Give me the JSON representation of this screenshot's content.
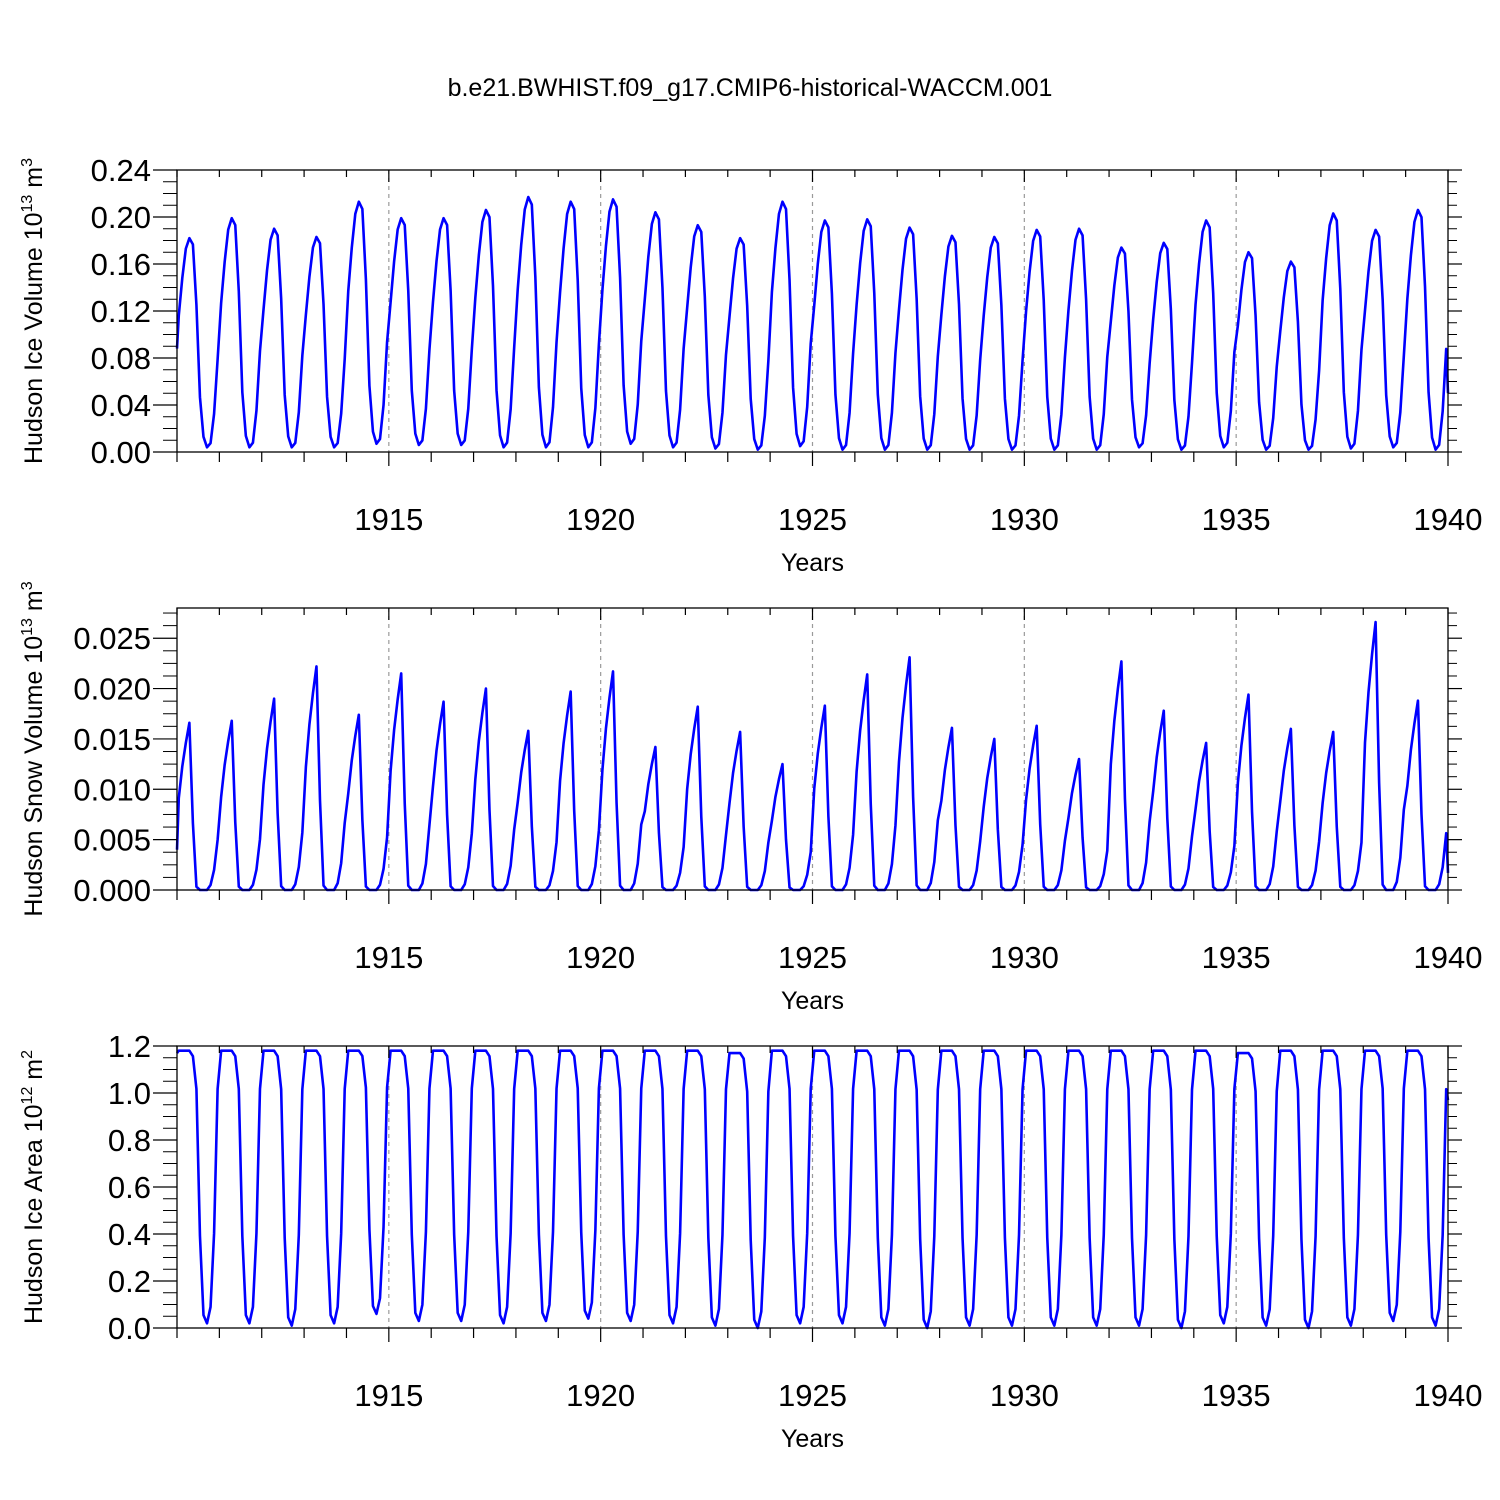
{
  "figure_title": "b.e21.BWHIST.f09_g17.CMIP6-historical-WACCM.001",
  "colors": {
    "line": "#0000ff",
    "axis": "#000000",
    "grid": "#9a9a9a"
  },
  "chart_data": [
    {
      "type": "line",
      "ylabel_main": "Hudson Ice Volume 10",
      "ylabel_exp": "13",
      "ylabel_unit": " m",
      "ylabel_unit_exp": "3",
      "xlabel": "Years",
      "xlim": [
        1910.0,
        1940.0
      ],
      "ylim": [
        0.0,
        0.24
      ],
      "xticks": [
        1915,
        1920,
        1925,
        1930,
        1935,
        1940
      ],
      "yticks": [
        "0.00",
        "0.04",
        "0.08",
        "0.12",
        "0.16",
        "0.20",
        "0.24"
      ],
      "grid_x": true,
      "series": [
        {
          "x_start": 1910.042,
          "step": 0.08333,
          "cycle_peaks": [
            0.182,
            0.199,
            0.19,
            0.183,
            0.213,
            0.199,
            0.199,
            0.206,
            0.217,
            0.213,
            0.215,
            0.204,
            0.193,
            0.182,
            0.213,
            0.197,
            0.198,
            0.191,
            0.184,
            0.183,
            0.189,
            0.19,
            0.174,
            0.178,
            0.197,
            0.17,
            0.162,
            0.203,
            0.189,
            0.206
          ],
          "cycle_mins": [
            0.004,
            0.004,
            0.004,
            0.004,
            0.007,
            0.006,
            0.006,
            0.004,
            0.004,
            0.004,
            0.007,
            0.004,
            0.003,
            0.002,
            0.005,
            0.002,
            0.002,
            0.002,
            0.002,
            0.002,
            0.002,
            0.002,
            0.004,
            0.002,
            0.004,
            0.002,
            0.002,
            0.003,
            0.004,
            0.002
          ],
          "values_start": 0.088,
          "values_end": 0.05
        }
      ]
    },
    {
      "type": "line",
      "ylabel_main": "Hudson Snow Volume 10",
      "ylabel_exp": "13",
      "ylabel_unit": " m",
      "ylabel_unit_exp": "3",
      "xlabel": "Years",
      "xlim": [
        1910.0,
        1940.0
      ],
      "ylim": [
        0.0,
        0.028
      ],
      "xticks": [
        1915,
        1920,
        1925,
        1930,
        1935,
        1940
      ],
      "yticks": [
        "0.000",
        "0.005",
        "0.010",
        "0.015",
        "0.020",
        "0.025"
      ],
      "grid_x": true,
      "series": [
        {
          "x_start": 1910.042,
          "step": 0.08333,
          "cycle_peaks": [
            0.0166,
            0.0168,
            0.019,
            0.0222,
            0.0174,
            0.0215,
            0.0187,
            0.02,
            0.0158,
            0.0197,
            0.0217,
            0.0142,
            0.0182,
            0.0157,
            0.0125,
            0.0183,
            0.0214,
            0.0231,
            0.0161,
            0.015,
            0.0163,
            0.013,
            0.0227,
            0.0178,
            0.0146,
            0.0194,
            0.016,
            0.0157,
            0.0266,
            0.0188
          ],
          "cycle_mins": [
            0.0,
            0.0,
            0.0,
            0.0,
            0.0,
            0.0,
            0.0,
            0.0,
            0.0,
            0.0,
            0.0,
            0.0,
            0.0,
            0.0,
            0.0,
            0.0,
            0.0,
            0.0,
            0.0,
            0.0,
            0.0,
            0.0,
            0.0,
            0.0,
            0.0,
            0.0,
            0.0,
            0.0,
            0.0,
            0.0
          ],
          "values_start": 0.004,
          "values_end": 0.0017
        }
      ]
    },
    {
      "type": "line",
      "ylabel_main": "Hudson Ice Area 10",
      "ylabel_exp": "12",
      "ylabel_unit": " m",
      "ylabel_unit_exp": "2",
      "xlabel": "Years",
      "xlim": [
        1910.0,
        1940.0
      ],
      "ylim": [
        0.0,
        1.2
      ],
      "xticks": [
        1915,
        1920,
        1925,
        1930,
        1935,
        1940
      ],
      "yticks": [
        "0.0",
        "0.2",
        "0.4",
        "0.6",
        "0.8",
        "1.0",
        "1.2"
      ],
      "grid_x": true,
      "series": [
        {
          "x_start": 1910.042,
          "step": 0.08333,
          "cycle_peaks": [
            1.18,
            1.18,
            1.18,
            1.18,
            1.18,
            1.18,
            1.18,
            1.18,
            1.18,
            1.18,
            1.18,
            1.18,
            1.18,
            1.17,
            1.18,
            1.18,
            1.18,
            1.18,
            1.18,
            1.18,
            1.18,
            1.18,
            1.18,
            1.18,
            1.18,
            1.17,
            1.18,
            1.18,
            1.18,
            1.18
          ],
          "cycle_mins": [
            0.02,
            0.02,
            0.01,
            0.02,
            0.06,
            0.03,
            0.03,
            0.02,
            0.03,
            0.04,
            0.03,
            0.02,
            0.01,
            0.0,
            0.02,
            0.02,
            0.01,
            0.0,
            0.01,
            0.01,
            0.01,
            0.01,
            0.01,
            0.0,
            0.02,
            0.01,
            0.0,
            0.01,
            0.03,
            0.01
          ],
          "values_start": 1.17,
          "values_end": 0.97
        }
      ]
    }
  ]
}
